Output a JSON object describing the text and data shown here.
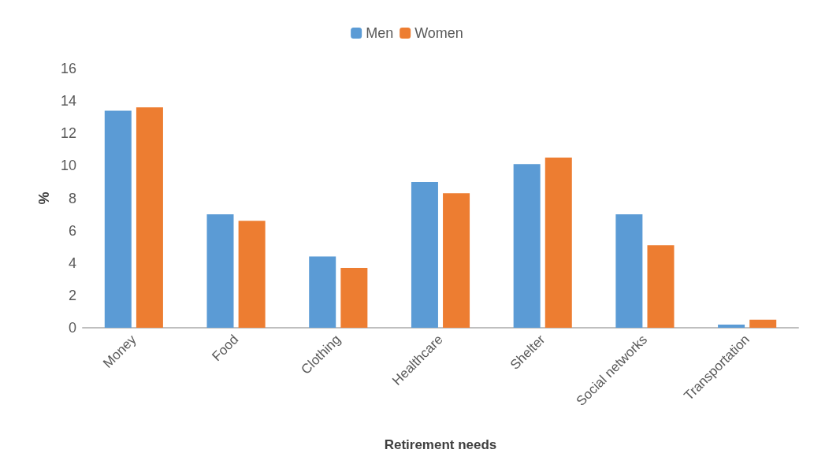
{
  "chart_data": {
    "type": "bar",
    "xlabel": "Retirement needs",
    "ylabel": "%",
    "categories": [
      "Money",
      "Food",
      "Clothing",
      "Healthcare",
      "Shelter",
      "Social networks",
      "Transportation"
    ],
    "series": [
      {
        "name": "Men",
        "color": "#5b9bd5",
        "values": [
          13.4,
          7.0,
          4.4,
          9.0,
          10.1,
          7.0,
          0.2
        ]
      },
      {
        "name": "Women",
        "color": "#ed7d31",
        "values": [
          13.6,
          6.6,
          3.7,
          8.3,
          10.5,
          5.1,
          0.5
        ]
      }
    ],
    "ylim": [
      0,
      16
    ],
    "yticks": [
      0,
      2,
      4,
      6,
      8,
      10,
      12,
      14,
      16
    ],
    "grid": false,
    "legend": "top"
  }
}
